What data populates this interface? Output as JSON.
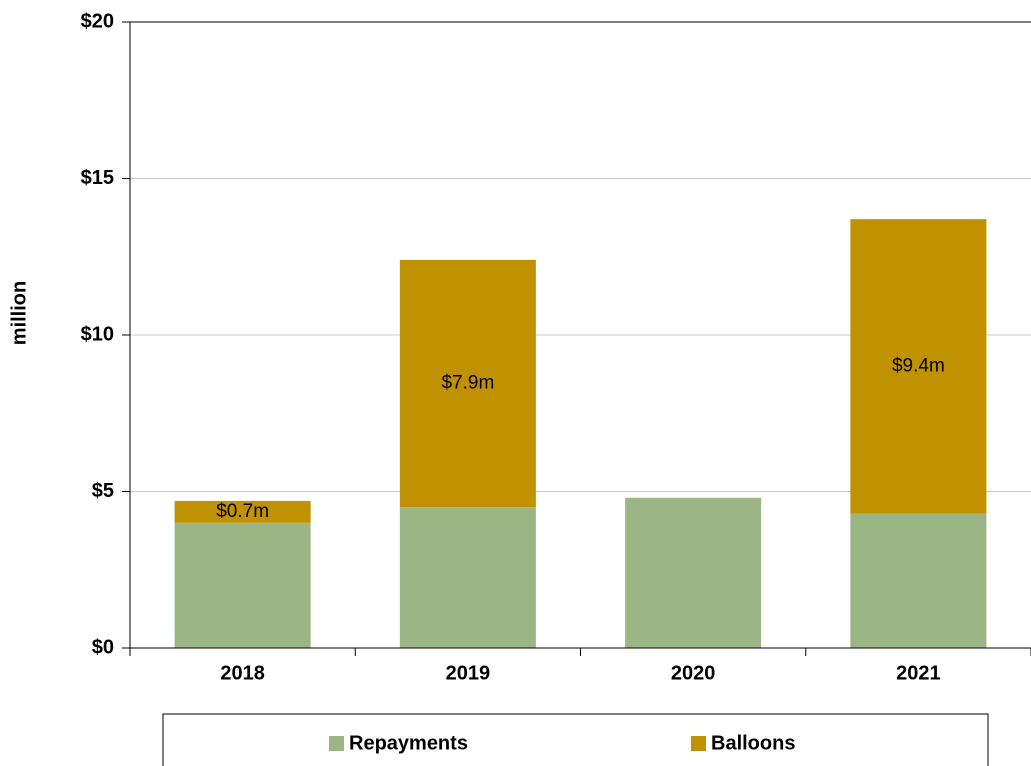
{
  "chart_data": {
    "type": "stacked_bar",
    "y_label": "million",
    "categories": [
      "2018",
      "2019",
      "2020",
      "2021"
    ],
    "series": [
      {
        "name": "Repayments",
        "color": "#9bb585",
        "values": [
          4.0,
          4.5,
          4.8,
          4.3
        ]
      },
      {
        "name": "Balloons",
        "color": "#c09100",
        "values": [
          0.7,
          7.9,
          null,
          9.4
        ],
        "value_labels": [
          "$0.7m",
          "$7.9m",
          null,
          "$9.4m"
        ]
      }
    ],
    "ylim": [
      0,
      20
    ],
    "yticks": [
      {
        "value": 0,
        "label": "$0"
      },
      {
        "value": 5,
        "label": "$5"
      },
      {
        "value": 10,
        "label": "$10"
      },
      {
        "value": 15,
        "label": "$15"
      },
      {
        "value": 20,
        "label": "$20"
      }
    ],
    "grid": true,
    "legend": "bottom"
  }
}
